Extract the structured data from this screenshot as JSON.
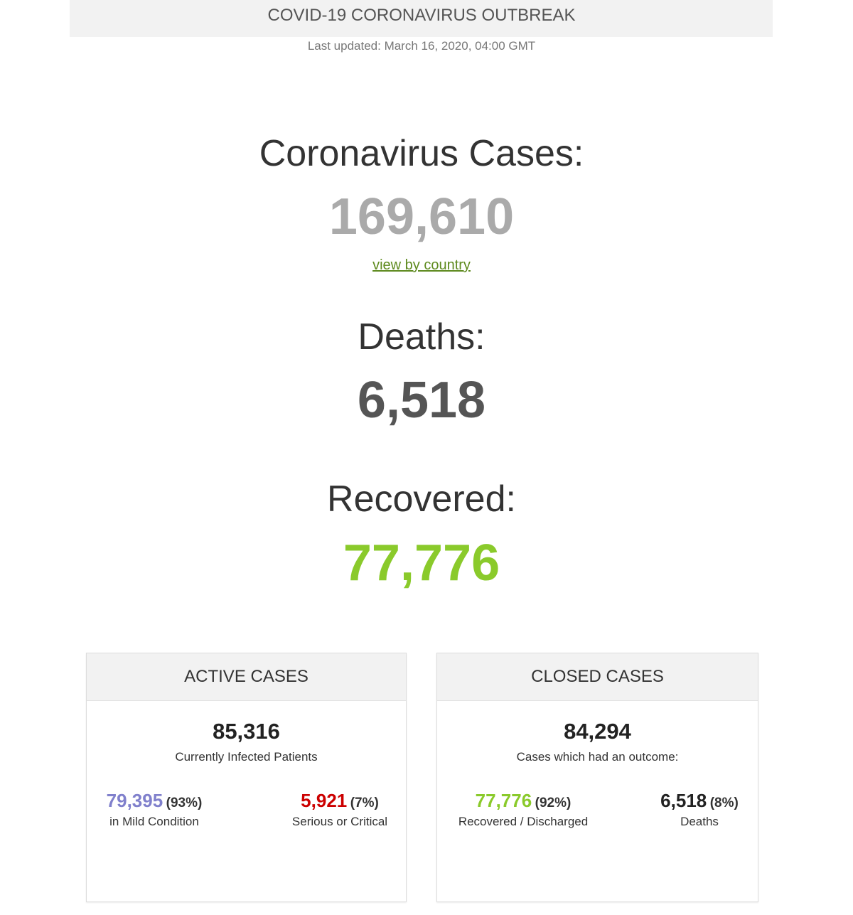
{
  "header": {
    "title": "COVID-19 CORONAVIRUS OUTBREAK",
    "last_updated": "Last updated: March 16, 2020, 04:00 GMT"
  },
  "main": {
    "cases_label": "Coronavirus Cases:",
    "cases_value": "169,610",
    "view_by_country": "view by country",
    "deaths_label": "Deaths:",
    "deaths_value": "6,518",
    "recovered_label": "Recovered:",
    "recovered_value": "77,776"
  },
  "active": {
    "title": "ACTIVE CASES",
    "total": "85,316",
    "subtitle": "Currently Infected Patients",
    "mild": {
      "value": "79,395",
      "pct": "(93%)",
      "label": "in Mild Condition"
    },
    "critical": {
      "value": "5,921",
      "pct": "(7%)",
      "label": "Serious or Critical"
    }
  },
  "closed": {
    "title": "CLOSED CASES",
    "total": "84,294",
    "subtitle": "Cases which had an outcome:",
    "recovered": {
      "value": "77,776",
      "pct": "(92%)",
      "label": "Recovered / Discharged"
    },
    "deaths": {
      "value": "6,518",
      "pct": "(8%)",
      "label": "Deaths"
    }
  },
  "colors": {
    "cases": "#aaaaaa",
    "deaths": "#555555",
    "recovered": "#8aca2b",
    "mild": "#8080cc",
    "critical": "#cc0000",
    "link": "#5e8a1e"
  }
}
